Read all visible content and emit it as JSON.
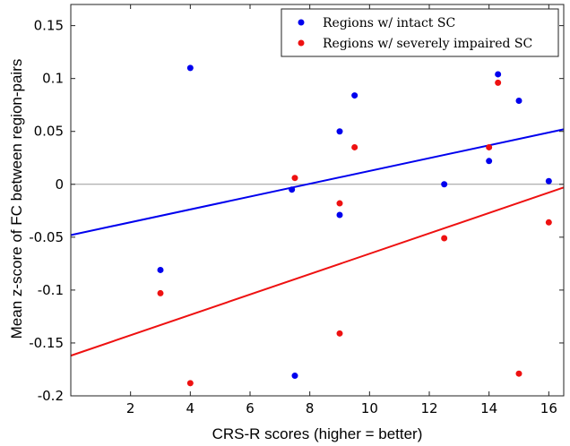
{
  "chart_data": {
    "type": "scatter",
    "xlabel": "CRS-R scores (higher = better)",
    "ylabel": "Mean z-score of FC between region-pairs",
    "xlim": [
      0,
      16.5
    ],
    "ylim": [
      -0.2,
      0.17
    ],
    "x_ticks": [
      2,
      4,
      6,
      8,
      10,
      12,
      14,
      16
    ],
    "y_ticks": [
      -0.2,
      -0.15,
      -0.1,
      -0.05,
      0,
      0.05,
      0.1,
      0.15
    ],
    "x_tick_labels": [
      "2",
      "4",
      "6",
      "8",
      "10",
      "12",
      "14",
      "16"
    ],
    "y_tick_labels": [
      "-0.2",
      "-0.15",
      "-0.1",
      "-0.05",
      "0",
      "0.05",
      "0.1",
      "0.15"
    ],
    "grid": false,
    "zero_line": true,
    "legend_position": "top-right",
    "series": [
      {
        "name": "Regions w/ intact SC",
        "color": "#0000ee",
        "points": [
          [
            3,
            -0.081
          ],
          [
            4,
            0.11
          ],
          [
            7.4,
            -0.005
          ],
          [
            7.5,
            -0.181
          ],
          [
            9,
            0.05
          ],
          [
            9,
            -0.029
          ],
          [
            9.5,
            0.084
          ],
          [
            12.5,
            0.0
          ],
          [
            14,
            0.022
          ],
          [
            14.3,
            0.104
          ],
          [
            15,
            0.079
          ],
          [
            16,
            0.003
          ]
        ],
        "trendline": [
          [
            0,
            -0.048
          ],
          [
            16.5,
            0.052
          ]
        ]
      },
      {
        "name": "Regions w/ severely impaired SC",
        "color": "#ee1111",
        "points": [
          [
            3,
            -0.103
          ],
          [
            4,
            -0.188
          ],
          [
            7.5,
            0.006
          ],
          [
            9,
            -0.018
          ],
          [
            9,
            -0.141
          ],
          [
            9.5,
            0.035
          ],
          [
            12.5,
            -0.051
          ],
          [
            14,
            0.035
          ],
          [
            14.3,
            0.096
          ],
          [
            15,
            -0.179
          ],
          [
            16,
            -0.036
          ]
        ],
        "trendline": [
          [
            0,
            -0.162
          ],
          [
            16.5,
            -0.003
          ]
        ]
      }
    ]
  }
}
